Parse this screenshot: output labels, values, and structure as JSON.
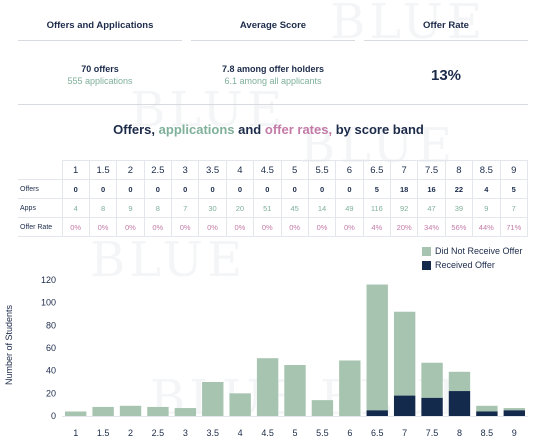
{
  "kpis": {
    "offers_apps": {
      "label": "Offers and Applications",
      "main": "70 offers",
      "sub": "555 applications"
    },
    "avg_score": {
      "label": "Average Score",
      "main": "7.8 among offer holders",
      "sub": "6.1 among all applicants"
    },
    "offer_rate": {
      "label": "Offer Rate",
      "value": "13%"
    }
  },
  "section_title": {
    "part1": "Offers,",
    "part2": "applications",
    "part3": "and",
    "part4": "offer rates,",
    "part5": "by score band"
  },
  "table": {
    "row_labels": {
      "offers": "Offers",
      "apps": "Apps",
      "rate": "Offer Rate"
    },
    "bands": [
      "1",
      "1.5",
      "2",
      "2.5",
      "3",
      "3.5",
      "4",
      "4.5",
      "5",
      "5.5",
      "6",
      "6.5",
      "7",
      "7.5",
      "8",
      "8.5",
      "9"
    ],
    "offers": [
      "0",
      "0",
      "0",
      "0",
      "0",
      "0",
      "0",
      "0",
      "0",
      "0",
      "0",
      "5",
      "18",
      "16",
      "22",
      "4",
      "5"
    ],
    "apps": [
      "4",
      "8",
      "9",
      "8",
      "7",
      "30",
      "20",
      "51",
      "45",
      "14",
      "49",
      "116",
      "92",
      "47",
      "39",
      "9",
      "7"
    ],
    "rates": [
      "0%",
      "0%",
      "0%",
      "0%",
      "0%",
      "0%",
      "0%",
      "0%",
      "0%",
      "0%",
      "0%",
      "4%",
      "20%",
      "34%",
      "56%",
      "44%",
      "71%"
    ]
  },
  "colors": {
    "not_received": "#a7c4b0",
    "received": "#132a4c",
    "accent_green": "#7fb09a",
    "accent_pink": "#c47ba8",
    "navy": "#1c2b4a"
  },
  "chart_data": {
    "type": "bar",
    "stacked": true,
    "categories": [
      "1",
      "1.5",
      "2",
      "2.5",
      "3",
      "3.5",
      "4",
      "4.5",
      "5",
      "5.5",
      "6",
      "6.5",
      "7",
      "7.5",
      "8",
      "8.5",
      "9"
    ],
    "series": [
      {
        "name": "Received Offer",
        "values": [
          0,
          0,
          0,
          0,
          0,
          0,
          0,
          0,
          0,
          0,
          0,
          5,
          18,
          16,
          22,
          4,
          5
        ]
      },
      {
        "name": "Did Not Receive Offer",
        "values": [
          4,
          8,
          9,
          8,
          7,
          30,
          20,
          51,
          45,
          14,
          49,
          111,
          74,
          31,
          17,
          5,
          2
        ]
      }
    ],
    "ylabel": "Number of Students",
    "ylim": [
      -8,
      125
    ],
    "yticks": [
      0,
      20,
      40,
      60,
      80,
      100,
      120
    ],
    "legend": [
      "Did Not Receive Offer",
      "Received Offer"
    ],
    "legend_position": "top-right",
    "grid": false
  }
}
